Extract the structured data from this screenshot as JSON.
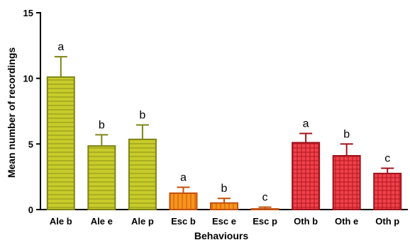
{
  "chart_data": {
    "type": "bar",
    "title": "",
    "xlabel": "Behaviours",
    "ylabel": "Mean number of recordings",
    "ylim": [
      0,
      15
    ],
    "yticks": [
      0,
      5,
      10,
      15
    ],
    "grid": false,
    "error_bars": "upper",
    "bars": [
      {
        "category": "Ale b",
        "value": 10.1,
        "error": 1.55,
        "letter": "a",
        "group": "Ale"
      },
      {
        "category": "Ale e",
        "value": 4.85,
        "error": 0.85,
        "letter": "b",
        "group": "Ale"
      },
      {
        "category": "Ale p",
        "value": 5.35,
        "error": 1.1,
        "letter": "b",
        "group": "Ale"
      },
      {
        "category": "Esc b",
        "value": 1.25,
        "error": 0.45,
        "letter": "a",
        "group": "Esc"
      },
      {
        "category": "Esc e",
        "value": 0.5,
        "error": 0.35,
        "letter": "b",
        "group": "Esc"
      },
      {
        "category": "Esc p",
        "value": 0.05,
        "error": 0.13,
        "letter": "c",
        "group": "Esc"
      },
      {
        "category": "Oth b",
        "value": 5.1,
        "error": 0.7,
        "letter": "a",
        "group": "Oth"
      },
      {
        "category": "Oth e",
        "value": 4.1,
        "error": 0.9,
        "letter": "b",
        "group": "Oth"
      },
      {
        "category": "Oth p",
        "value": 2.75,
        "error": 0.4,
        "letter": "c",
        "group": "Oth"
      }
    ],
    "group_colors": {
      "Ale": {
        "fill": "#c8cc2a",
        "stroke": "#7e8416",
        "pattern": "horizontal-lines"
      },
      "Esc": {
        "fill": "#f7941d",
        "stroke": "#c0500a",
        "pattern": "vertical-lines"
      },
      "Oth": {
        "fill": "#f0414a",
        "stroke": "#a0141c",
        "pattern": "grid"
      }
    }
  }
}
